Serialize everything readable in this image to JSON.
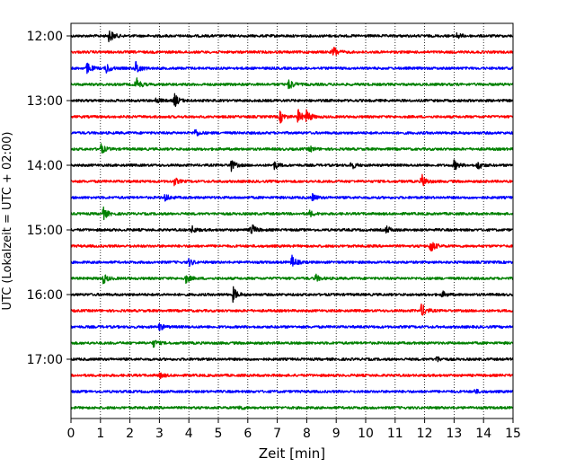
{
  "chart_data": {
    "type": "line",
    "title": "",
    "xlabel": "Zeit  [min]",
    "ylabel": "UTC (Lokalzeit = UTC + 02:00)",
    "xlim": [
      0,
      15
    ],
    "x_ticks": [
      0,
      1,
      2,
      3,
      4,
      5,
      6,
      7,
      8,
      9,
      10,
      11,
      12,
      13,
      14,
      15
    ],
    "y_tick_labels": [
      "12:00",
      "13:00",
      "14:00",
      "15:00",
      "16:00",
      "17:00"
    ],
    "grid": "vertical dotted at each minute",
    "colors": [
      "#000000",
      "#ff0000",
      "#0000ff",
      "#008000"
    ],
    "traces": [
      {
        "start": "12:00",
        "color": "#000000",
        "events": [
          {
            "x": 1.3,
            "amp": 1.0
          },
          {
            "x": 13.1,
            "amp": 0.4
          }
        ]
      },
      {
        "start": "12:15",
        "color": "#ff0000",
        "events": [
          {
            "x": 8.9,
            "amp": 0.9
          }
        ]
      },
      {
        "start": "12:30",
        "color": "#0000ff",
        "events": [
          {
            "x": 0.55,
            "amp": 0.8
          },
          {
            "x": 1.2,
            "amp": 0.7
          },
          {
            "x": 2.2,
            "amp": 1.0
          }
        ]
      },
      {
        "start": "12:45",
        "color": "#008000",
        "events": [
          {
            "x": 2.2,
            "amp": 1.0
          },
          {
            "x": 7.4,
            "amp": 0.8
          }
        ]
      },
      {
        "start": "13:00",
        "color": "#000000",
        "events": [
          {
            "x": 3.5,
            "amp": 1.0
          },
          {
            "x": 2.9,
            "amp": 0.4
          }
        ]
      },
      {
        "start": "13:15",
        "color": "#ff0000",
        "events": [
          {
            "x": 7.1,
            "amp": 0.8
          },
          {
            "x": 7.7,
            "amp": 1.0
          },
          {
            "x": 8.0,
            "amp": 0.9
          }
        ]
      },
      {
        "start": "13:30",
        "color": "#0000ff",
        "events": [
          {
            "x": 4.2,
            "amp": 0.6
          }
        ]
      },
      {
        "start": "13:45",
        "color": "#008000",
        "events": [
          {
            "x": 1.0,
            "amp": 0.8
          },
          {
            "x": 8.1,
            "amp": 0.4
          }
        ]
      },
      {
        "start": "14:00",
        "color": "#000000",
        "events": [
          {
            "x": 5.4,
            "amp": 1.0
          },
          {
            "x": 6.9,
            "amp": 0.5
          },
          {
            "x": 9.5,
            "amp": 0.6
          },
          {
            "x": 13.0,
            "amp": 0.7
          },
          {
            "x": 13.8,
            "amp": 0.6
          }
        ]
      },
      {
        "start": "14:15",
        "color": "#ff0000",
        "events": [
          {
            "x": 3.5,
            "amp": 0.5
          },
          {
            "x": 11.9,
            "amp": 1.0
          }
        ]
      },
      {
        "start": "14:30",
        "color": "#0000ff",
        "events": [
          {
            "x": 3.2,
            "amp": 0.5
          },
          {
            "x": 8.2,
            "amp": 0.5
          }
        ]
      },
      {
        "start": "14:45",
        "color": "#008000",
        "events": [
          {
            "x": 1.1,
            "amp": 0.8
          },
          {
            "x": 8.1,
            "amp": 0.4
          }
        ]
      },
      {
        "start": "15:00",
        "color": "#000000",
        "events": [
          {
            "x": 4.1,
            "amp": 0.5
          },
          {
            "x": 6.1,
            "amp": 1.0
          },
          {
            "x": 10.7,
            "amp": 0.5
          }
        ]
      },
      {
        "start": "15:15",
        "color": "#ff0000",
        "events": [
          {
            "x": 12.2,
            "amp": 1.0
          }
        ]
      },
      {
        "start": "15:30",
        "color": "#0000ff",
        "events": [
          {
            "x": 4.0,
            "amp": 0.5
          },
          {
            "x": 7.5,
            "amp": 0.9
          }
        ]
      },
      {
        "start": "15:45",
        "color": "#008000",
        "events": [
          {
            "x": 1.1,
            "amp": 0.7
          },
          {
            "x": 3.9,
            "amp": 0.6
          },
          {
            "x": 8.3,
            "amp": 0.5
          }
        ]
      },
      {
        "start": "16:00",
        "color": "#000000",
        "events": [
          {
            "x": 5.5,
            "amp": 1.0
          },
          {
            "x": 12.6,
            "amp": 0.4
          }
        ]
      },
      {
        "start": "16:15",
        "color": "#ff0000",
        "events": [
          {
            "x": 11.9,
            "amp": 1.0
          }
        ]
      },
      {
        "start": "16:30",
        "color": "#0000ff",
        "events": [
          {
            "x": 3.0,
            "amp": 0.5
          }
        ]
      },
      {
        "start": "16:45",
        "color": "#008000",
        "events": [
          {
            "x": 2.8,
            "amp": 0.5
          }
        ]
      },
      {
        "start": "17:00",
        "color": "#000000",
        "events": [
          {
            "x": 12.4,
            "amp": 0.4
          }
        ]
      },
      {
        "start": "17:15",
        "color": "#ff0000",
        "events": [
          {
            "x": 3.0,
            "amp": 0.4
          }
        ]
      },
      {
        "start": "17:30",
        "color": "#0000ff",
        "events": [
          {
            "x": 13.7,
            "amp": 0.3
          }
        ]
      },
      {
        "start": "17:45",
        "color": "#008000",
        "events": [
          {
            "x": 5.7,
            "amp": 0.3
          }
        ]
      }
    ]
  }
}
